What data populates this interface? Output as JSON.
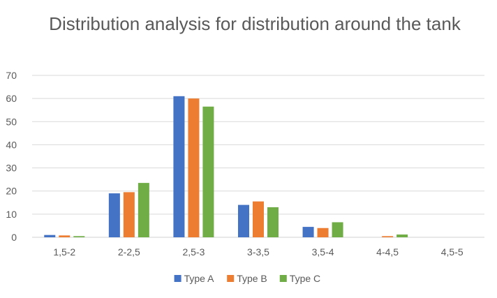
{
  "chart_data": {
    "type": "bar",
    "title": "Distribution analysis for distribution around the tank",
    "xlabel": "",
    "ylabel": "",
    "categories": [
      "1,5-2",
      "2-2,5",
      "2,5-3",
      "3-3,5",
      "3,5-4",
      "4-4,5",
      "4,5-5"
    ],
    "series": [
      {
        "name": "Type A",
        "color": "#4472C4",
        "values": [
          1,
          19,
          61,
          14,
          4.5,
          0,
          0
        ]
      },
      {
        "name": "Type B",
        "color": "#ED7D31",
        "values": [
          0.8,
          19.5,
          60,
          15.5,
          4,
          0.5,
          0
        ]
      },
      {
        "name": "Type C",
        "color": "#70AD47",
        "values": [
          0.5,
          23.5,
          56.5,
          13,
          6.5,
          1.2,
          0
        ]
      }
    ],
    "ylim": [
      0,
      70
    ],
    "yticks": [
      0,
      10,
      20,
      30,
      40,
      50,
      60,
      70
    ],
    "grid": true,
    "legend_position": "bottom"
  }
}
